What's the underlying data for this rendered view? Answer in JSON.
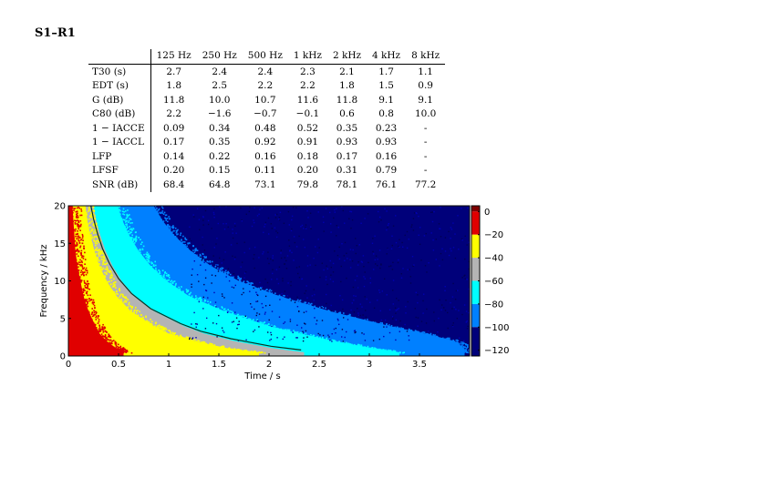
{
  "section_title": "S1–R1",
  "table": {
    "columns": [
      "125 Hz",
      "250 Hz",
      "500 Hz",
      "1 kHz",
      "2 kHz",
      "4 kHz",
      "8 kHz"
    ],
    "rows": [
      {
        "label": "T30 (s)",
        "values": [
          "2.7",
          "2.4",
          "2.4",
          "2.3",
          "2.1",
          "1.7",
          "1.1"
        ]
      },
      {
        "label": "EDT (s)",
        "values": [
          "1.8",
          "2.5",
          "2.2",
          "2.2",
          "1.8",
          "1.5",
          "0.9"
        ]
      },
      {
        "label": "G (dB)",
        "values": [
          "11.8",
          "10.0",
          "10.7",
          "11.6",
          "11.8",
          "9.1",
          "9.1"
        ]
      },
      {
        "label": "C80 (dB)",
        "values": [
          "2.2",
          "−1.6",
          "−0.7",
          "−0.1",
          "0.6",
          "0.8",
          "10.0"
        ]
      },
      {
        "label": "1 − IACCE",
        "values": [
          "0.09",
          "0.34",
          "0.48",
          "0.52",
          "0.35",
          "0.23",
          "-"
        ]
      },
      {
        "label": "1 − IACCL",
        "values": [
          "0.17",
          "0.35",
          "0.92",
          "0.91",
          "0.93",
          "0.93",
          "-"
        ]
      },
      {
        "label": "LFP",
        "values": [
          "0.14",
          "0.22",
          "0.16",
          "0.18",
          "0.17",
          "0.16",
          "-"
        ]
      },
      {
        "label": "LFSF",
        "values": [
          "0.20",
          "0.15",
          "0.11",
          "0.20",
          "0.31",
          "0.79",
          "-"
        ]
      },
      {
        "label": "SNR (dB)",
        "values": [
          "68.4",
          "64.8",
          "73.1",
          "79.8",
          "78.1",
          "76.1",
          "77.2"
        ]
      }
    ]
  },
  "chart_data": {
    "type": "heatmap",
    "xlabel": "Time / s",
    "ylabel": "Frequency / kHz",
    "xlim": [
      0,
      4
    ],
    "ylim": [
      0,
      20
    ],
    "x_ticks": [
      "0",
      "0.5",
      "1",
      "1.5",
      "2",
      "2.5",
      "3",
      "3.5"
    ],
    "y_ticks": [
      "0",
      "5",
      "10",
      "15",
      "20"
    ],
    "colorbar_ticks": [
      "0",
      "−20",
      "−40",
      "−60",
      "−80",
      "−100",
      "−120"
    ],
    "colorbar_range": [
      -125,
      5
    ],
    "colors": {
      "above_-20": "#e00000",
      "-40_to_-20": "#ffff00",
      "-60_to_-40": "#b4b4b4",
      "-80_to_-60": "#00ffff",
      "-100_to_-80": "#0080ff",
      "-120_to_-100": "#00007a",
      "colorbar_top": "#7f0000"
    },
    "decay_contours_approx": {
      "freq_khz": [
        0.5,
        1,
        2,
        3,
        4,
        6,
        8,
        10,
        12,
        14,
        16,
        18,
        20
      ],
      "t_red_edge_s": [
        0.55,
        0.48,
        0.38,
        0.31,
        0.27,
        0.2,
        0.15,
        0.12,
        0.09,
        0.07,
        0.06,
        0.05,
        0.04
      ],
      "t_yellow_edge_s": [
        1.9,
        1.6,
        1.25,
        1.0,
        0.85,
        0.62,
        0.48,
        0.38,
        0.31,
        0.26,
        0.22,
        0.19,
        0.17
      ],
      "t_gray_edge_s": [
        2.35,
        2.05,
        1.65,
        1.35,
        1.15,
        0.85,
        0.66,
        0.53,
        0.44,
        0.37,
        0.32,
        0.28,
        0.25
      ],
      "t_cyan_edge_s": [
        3.3,
        3.05,
        2.65,
        2.3,
        2.0,
        1.55,
        1.2,
        0.98,
        0.82,
        0.7,
        0.61,
        0.54,
        0.49
      ],
      "t_blue_edge_s": [
        3.95,
        3.95,
        3.85,
        3.55,
        3.2,
        2.6,
        2.1,
        1.7,
        1.42,
        1.22,
        1.06,
        0.94,
        0.85
      ]
    }
  }
}
